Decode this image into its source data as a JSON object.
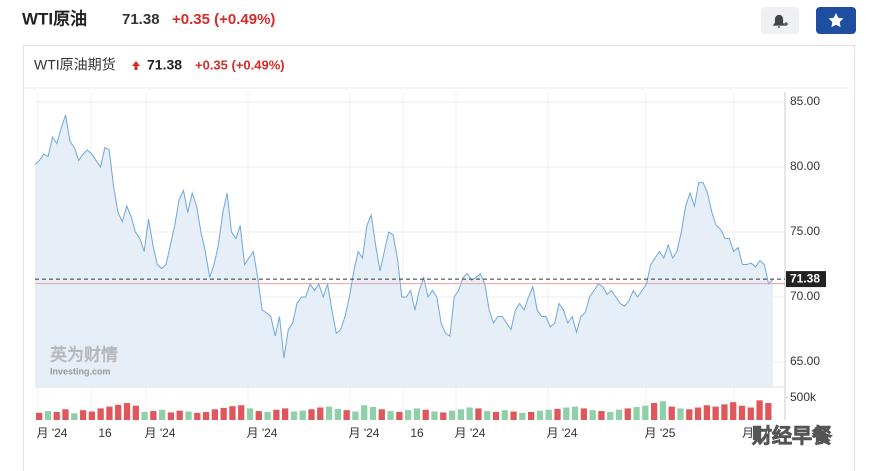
{
  "header": {
    "title": "WTI原油",
    "price": "71.38",
    "change": "+0.35 (+0.49%)"
  },
  "widget": {
    "title": "WTI原油期货",
    "price": "71.38",
    "change": "+0.35 (+0.49%)"
  },
  "watermark": {
    "brand": "英为财情",
    "site": "Investing.com",
    "overlay": "财经早餐"
  },
  "chart_data": {
    "type": "line",
    "color": "#6fa8dc",
    "fill": "#e6eef7",
    "values": [
      80.2,
      80.5,
      81,
      80.8,
      82.3,
      81.8,
      83,
      84,
      82,
      81.5,
      80.5,
      81,
      81.3,
      81,
      80.5,
      80,
      81.5,
      81.3,
      78.5,
      76.5,
      75.8,
      77,
      76.2,
      75,
      74.5,
      73.5,
      76,
      74,
      72.5,
      72.2,
      72.5,
      74,
      75.5,
      77.5,
      78.2,
      76.5,
      78,
      77,
      75,
      73.5,
      71.5,
      72.5,
      74,
      76.5,
      78,
      75,
      74.5,
      75.5,
      72.5,
      73,
      73.5,
      71.5,
      69,
      68.8,
      68.5,
      67,
      68.5,
      65.3,
      67.5,
      68,
      69.5,
      70,
      70,
      71,
      70.5,
      71,
      70,
      71,
      69,
      67.2,
      67.5,
      68.5,
      70,
      72,
      73.5,
      73,
      75.5,
      76.3,
      74,
      72,
      73.5,
      75,
      74.8,
      73,
      70,
      70,
      70.5,
      69,
      70.5,
      71.5,
      70,
      70.5,
      70,
      68,
      67.2,
      67,
      70,
      70.5,
      71.5,
      71.8,
      71.3,
      71.5,
      71.8,
      71,
      69,
      68,
      68.5,
      68.5,
      68,
      67.5,
      69,
      69.5,
      69,
      70,
      70.8,
      69,
      68.5,
      68.5,
      67.7,
      68,
      69.5,
      69,
      68,
      68.5,
      67.3,
      68.5,
      68.8,
      70,
      70.5,
      71,
      70.8,
      70.2,
      70.5,
      70,
      69.5,
      69.3,
      69.7,
      70.5,
      70,
      70.5,
      71,
      72.5,
      73,
      73.5,
      73,
      74,
      73,
      73.5,
      75,
      77,
      78,
      77,
      78.8,
      78.8,
      78,
      76.5,
      75.5,
      75.2,
      74.5,
      74.5,
      73.5,
      73.8,
      72.5,
      72.5,
      72.6,
      72.3,
      72.8,
      72.5,
      71,
      71.38
    ],
    "ylim": [
      63.08,
      85.77
    ],
    "yticks": [
      {
        "value": 65,
        "label": "65.00"
      },
      {
        "value": 70,
        "label": "70.00"
      },
      {
        "value": 75,
        "label": "75.00"
      },
      {
        "value": 80,
        "label": "80.00"
      },
      {
        "value": 85,
        "label": "85.00"
      }
    ],
    "current": {
      "value": 71.38,
      "label": "71.38"
    },
    "prev_close_line": 71.03,
    "x_labels": [
      "月 '24",
      "16",
      "月 '24",
      "月 '24",
      "月 '24",
      "16",
      "月 '24",
      "月 '24",
      "月 '25",
      "月"
    ],
    "volume": {
      "ylim": [
        0,
        560000
      ],
      "yticks": [
        {
          "value": 500000,
          "label": "500k"
        }
      ],
      "values": [
        160000,
        200000,
        180000,
        240000,
        150000,
        220000,
        190000,
        260000,
        300000,
        340000,
        380000,
        320000,
        180000,
        200000,
        230000,
        170000,
        210000,
        190000,
        160000,
        180000,
        240000,
        270000,
        310000,
        330000,
        260000,
        200000,
        180000,
        230000,
        260000,
        190000,
        210000,
        240000,
        280000,
        300000,
        250000,
        220000,
        190000,
        330000,
        290000,
        240000,
        200000,
        180000,
        220000,
        260000,
        230000,
        190000,
        170000,
        210000,
        240000,
        280000,
        260000,
        200000,
        180000,
        220000,
        190000,
        160000,
        180000,
        210000,
        230000,
        250000,
        280000,
        300000,
        260000,
        220000,
        200000,
        180000,
        230000,
        260000,
        290000,
        320000,
        380000,
        420000,
        300000,
        260000,
        240000,
        280000,
        330000,
        300000,
        350000,
        400000,
        320000,
        280000,
        440000,
        380000
      ],
      "colors": [
        "#e0575b",
        "#8fd0a8",
        "#e0575b",
        "#e0575b",
        "#8fd0a8",
        "#e0575b",
        "#e0575b",
        "#e0575b",
        "#e0575b",
        "#e0575b",
        "#e0575b",
        "#e0575b",
        "#8fd0a8",
        "#e0575b",
        "#8fd0a8",
        "#e0575b",
        "#e0575b",
        "#8fd0a8",
        "#e0575b",
        "#e0575b",
        "#e0575b",
        "#e0575b",
        "#e0575b",
        "#e0575b",
        "#8fd0a8",
        "#e0575b",
        "#8fd0a8",
        "#e0575b",
        "#e0575b",
        "#8fd0a8",
        "#8fd0a8",
        "#e0575b",
        "#e0575b",
        "#8fd0a8",
        "#8fd0a8",
        "#e0575b",
        "#8fd0a8",
        "#8fd0a8",
        "#8fd0a8",
        "#e0575b",
        "#8fd0a8",
        "#e0575b",
        "#8fd0a8",
        "#8fd0a8",
        "#e0575b",
        "#8fd0a8",
        "#e0575b",
        "#8fd0a8",
        "#8fd0a8",
        "#8fd0a8",
        "#e0575b",
        "#8fd0a8",
        "#e0575b",
        "#8fd0a8",
        "#e0575b",
        "#8fd0a8",
        "#e0575b",
        "#8fd0a8",
        "#8fd0a8",
        "#e0575b",
        "#8fd0a8",
        "#8fd0a8",
        "#e0575b",
        "#8fd0a8",
        "#e0575b",
        "#8fd0a8",
        "#8fd0a8",
        "#e0575b",
        "#8fd0a8",
        "#8fd0a8",
        "#e0575b",
        "#8fd0a8",
        "#e0575b",
        "#8fd0a8",
        "#e0575b",
        "#e0575b",
        "#e0575b",
        "#e0575b",
        "#e0575b",
        "#e0575b",
        "#e0575b",
        "#e0575b",
        "#e0575b",
        "#e0575b"
      ]
    }
  }
}
